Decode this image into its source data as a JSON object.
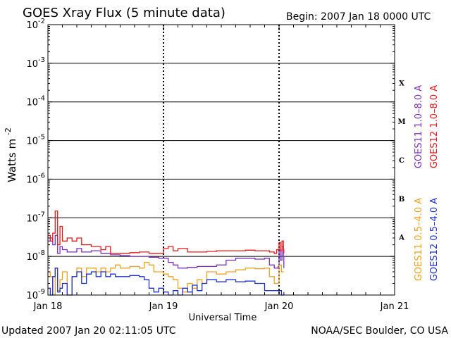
{
  "header": {
    "title": "GOES Xray Flux (5 minute data)",
    "begin": "Begin:  2007 Jan 18 0000 UTC"
  },
  "footer": {
    "updated": "Updated 2007 Jan 20 02:11:05 UTC",
    "credit": "NOAA/SEC Boulder, CO USA"
  },
  "chart_data": {
    "type": "line",
    "title": "GOES Xray Flux (5 minute data)",
    "xlabel": "Universal Time",
    "ylabel_base": "Watts m",
    "ylabel_exp": "-2",
    "yscale": "log",
    "ylim": [
      1e-09,
      0.01
    ],
    "xlim": [
      0,
      72
    ],
    "x_unit": "hours since 2007 Jan 18 0000 UTC",
    "x_ticks": [
      {
        "x": 0,
        "label": "Jan 18"
      },
      {
        "x": 24,
        "label": "Jan 19"
      },
      {
        "x": 48,
        "label": "Jan 20"
      },
      {
        "x": 72,
        "label": "Jan 21"
      }
    ],
    "y_ticks": [
      {
        "exp": -9,
        "base": "10",
        "sup": "-9"
      },
      {
        "exp": -8,
        "base": "10",
        "sup": "-8"
      },
      {
        "exp": -7,
        "base": "10",
        "sup": "-7"
      },
      {
        "exp": -6,
        "base": "10",
        "sup": "-6"
      },
      {
        "exp": -5,
        "base": "10",
        "sup": "-5"
      },
      {
        "exp": -4,
        "base": "10",
        "sup": "-4"
      },
      {
        "exp": -3,
        "base": "10",
        "sup": "-3"
      },
      {
        "exp": -2,
        "base": "10",
        "sup": "-2"
      }
    ],
    "flare_classes": [
      {
        "label": "A",
        "exp": -8
      },
      {
        "label": "B",
        "exp": -7
      },
      {
        "label": "C",
        "exp": -6
      },
      {
        "label": "M",
        "exp": -5
      },
      {
        "label": "X",
        "exp": -4
      }
    ],
    "series": [
      {
        "name": "GOES11 1.0-8.0 A",
        "color": "#7b2fbf",
        "points": [
          [
            0,
            2.5e-08
          ],
          [
            0.5,
            3e-08
          ],
          [
            1,
            2e-08
          ],
          [
            1.5,
            3.5e-08
          ],
          [
            2,
            1.2e-08
          ],
          [
            2.5,
            1.8e-08
          ],
          [
            3,
            1.5e-08
          ],
          [
            4,
            1.3e-08
          ],
          [
            6,
            1.6e-08
          ],
          [
            7,
            1.3e-08
          ],
          [
            9,
            1.4e-08
          ],
          [
            11,
            1.2e-08
          ],
          [
            13,
            1.1e-08
          ],
          [
            15,
            1.05e-08
          ],
          [
            17,
            1e-08
          ],
          [
            19,
            1e-08
          ],
          [
            21,
            9.5e-09
          ],
          [
            23,
            9e-09
          ],
          [
            25,
            7e-09
          ],
          [
            26,
            6e-09
          ],
          [
            27,
            5e-09
          ],
          [
            29,
            5.2e-09
          ],
          [
            31,
            5.5e-09
          ],
          [
            33,
            5.5e-09
          ],
          [
            35,
            6e-09
          ],
          [
            37,
            8e-09
          ],
          [
            39,
            9e-09
          ],
          [
            41,
            9e-09
          ],
          [
            43,
            8.5e-09
          ],
          [
            45,
            9e-09
          ],
          [
            46,
            6e-09
          ],
          [
            47,
            5e-09
          ],
          [
            47.8,
            5.5e-09
          ],
          [
            48,
            1.5e-08
          ],
          [
            48.3,
            8e-09
          ],
          [
            48.6,
            1.8e-08
          ],
          [
            48.9,
            1e-08
          ],
          [
            49,
            5e-09
          ]
        ]
      },
      {
        "name": "GOES12 1.0-8.0 A",
        "color": "#e81818",
        "points": [
          [
            0,
            3.5e-08
          ],
          [
            0.5,
            2.5e-08
          ],
          [
            1,
            4e-08
          ],
          [
            1.5,
            1.5e-07
          ],
          [
            2,
            2e-08
          ],
          [
            2.5,
            6e-08
          ],
          [
            3,
            2.5e-08
          ],
          [
            4,
            3e-08
          ],
          [
            5,
            2.5e-08
          ],
          [
            6,
            3e-08
          ],
          [
            7,
            2e-08
          ],
          [
            8,
            2e-08
          ],
          [
            9,
            1.8e-08
          ],
          [
            10,
            1.8e-08
          ],
          [
            11,
            1.5e-08
          ],
          [
            12,
            1.8e-08
          ],
          [
            13,
            1.2e-08
          ],
          [
            15,
            1.2e-08
          ],
          [
            17,
            1.25e-08
          ],
          [
            19,
            1.3e-08
          ],
          [
            21,
            1.2e-08
          ],
          [
            23,
            1.2e-08
          ],
          [
            24,
            1.6e-08
          ],
          [
            25,
            1.8e-08
          ],
          [
            26,
            1.4e-08
          ],
          [
            27,
            1.6e-08
          ],
          [
            29,
            1.3e-08
          ],
          [
            31,
            1.3e-08
          ],
          [
            33,
            1.35e-08
          ],
          [
            35,
            1.4e-08
          ],
          [
            37,
            1.4e-08
          ],
          [
            39,
            1.4e-08
          ],
          [
            41,
            1.45e-08
          ],
          [
            43,
            1.4e-08
          ],
          [
            45,
            1.4e-08
          ],
          [
            46,
            1.3e-08
          ],
          [
            47,
            1.2e-08
          ],
          [
            47.5,
            1.5e-08
          ],
          [
            48,
            2.3e-08
          ],
          [
            48.3,
            1.4e-08
          ],
          [
            48.6,
            2.5e-08
          ],
          [
            48.9,
            1.5e-08
          ],
          [
            49,
            1.2e-08
          ]
        ]
      },
      {
        "name": "GOES11 0.5-4.0 A",
        "color": "#f0a020",
        "points": [
          [
            0,
            4e-09
          ],
          [
            0.5,
            3e-09
          ],
          [
            1,
            1e-09
          ],
          [
            1.5,
            5e-09
          ],
          [
            2,
            1.3e-09
          ],
          [
            2.5,
            2.5e-09
          ],
          [
            3,
            4e-09
          ],
          [
            4,
            1e-09
          ],
          [
            5,
            3e-09
          ],
          [
            6,
            5e-09
          ],
          [
            7,
            3e-09
          ],
          [
            8,
            5e-09
          ],
          [
            9,
            5e-09
          ],
          [
            10,
            4e-09
          ],
          [
            11,
            5e-09
          ],
          [
            12,
            4e-09
          ],
          [
            13,
            5e-09
          ],
          [
            14,
            6e-09
          ],
          [
            15,
            5e-09
          ],
          [
            17,
            5.5e-09
          ],
          [
            19,
            5e-09
          ],
          [
            20,
            7e-09
          ],
          [
            21,
            6e-09
          ],
          [
            22,
            4e-09
          ],
          [
            23,
            4e-09
          ],
          [
            24,
            3.5e-09
          ],
          [
            25,
            3e-09
          ],
          [
            26,
            2.5e-09
          ],
          [
            27,
            1.5e-09
          ],
          [
            28,
            1.2e-09
          ],
          [
            29,
            2e-09
          ],
          [
            30,
            1.5e-09
          ],
          [
            31,
            2.5e-09
          ],
          [
            32,
            2e-09
          ],
          [
            33,
            4e-09
          ],
          [
            35,
            3.5e-09
          ],
          [
            37,
            4e-09
          ],
          [
            39,
            4.5e-09
          ],
          [
            41,
            5e-09
          ],
          [
            43,
            4.8e-09
          ],
          [
            45,
            5e-09
          ],
          [
            46,
            3e-09
          ],
          [
            47,
            2e-09
          ],
          [
            48,
            6e-09
          ],
          [
            48.5,
            4e-09
          ],
          [
            49,
            4e-09
          ]
        ]
      },
      {
        "name": "GOES12 0.5-4.0 A",
        "color": "#1e32c8",
        "points": [
          [
            0,
            1.5e-09
          ],
          [
            0.5,
            1e-09
          ],
          [
            1,
            3e-09
          ],
          [
            1.5,
            5e-09
          ],
          [
            2,
            1.2e-09
          ],
          [
            2.5,
            1.5e-09
          ],
          [
            3,
            2e-09
          ],
          [
            4,
            1e-09
          ],
          [
            5,
            3e-09
          ],
          [
            6,
            4e-09
          ],
          [
            7,
            2e-09
          ],
          [
            8,
            3.5e-09
          ],
          [
            9,
            4e-09
          ],
          [
            10,
            3e-09
          ],
          [
            11,
            4e-09
          ],
          [
            12,
            3e-09
          ],
          [
            13,
            3.5e-09
          ],
          [
            14,
            3e-09
          ],
          [
            15,
            3e-09
          ],
          [
            17,
            3.2e-09
          ],
          [
            19,
            3e-09
          ],
          [
            20,
            2.5e-09
          ],
          [
            21,
            1.5e-09
          ],
          [
            22,
            1.2e-09
          ],
          [
            23,
            1.5e-09
          ],
          [
            24,
            1.2e-09
          ],
          [
            25,
            1e-09
          ],
          [
            26,
            1.3e-09
          ],
          [
            27,
            1e-09
          ],
          [
            28,
            1.5e-09
          ],
          [
            29,
            1.2e-09
          ],
          [
            30,
            1.8e-09
          ],
          [
            31,
            1.3e-09
          ],
          [
            32,
            2e-09
          ],
          [
            33,
            2.5e-09
          ],
          [
            35,
            2.2e-09
          ],
          [
            37,
            2.5e-09
          ],
          [
            39,
            2.2e-09
          ],
          [
            41,
            2.3e-09
          ],
          [
            43,
            2e-09
          ],
          [
            45,
            1.3e-09
          ],
          [
            47,
            1.3e-09
          ],
          [
            48,
            1.3e-09
          ],
          [
            48.5,
            1e-09
          ],
          [
            49,
            1.2e-09
          ]
        ]
      }
    ],
    "legend": [
      {
        "label": "GOES11 1.0–8.0 A",
        "color": "#7b2fbf"
      },
      {
        "label": "GOES12 1.0–8.0 A",
        "color": "#e81818"
      },
      {
        "label": "GOES11 0.5–4.0 A",
        "color": "#f0a020"
      },
      {
        "label": "GOES12 0.5–4.0 A",
        "color": "#1e32c8"
      }
    ],
    "grid": true,
    "legend_placement": "right, vertical"
  }
}
